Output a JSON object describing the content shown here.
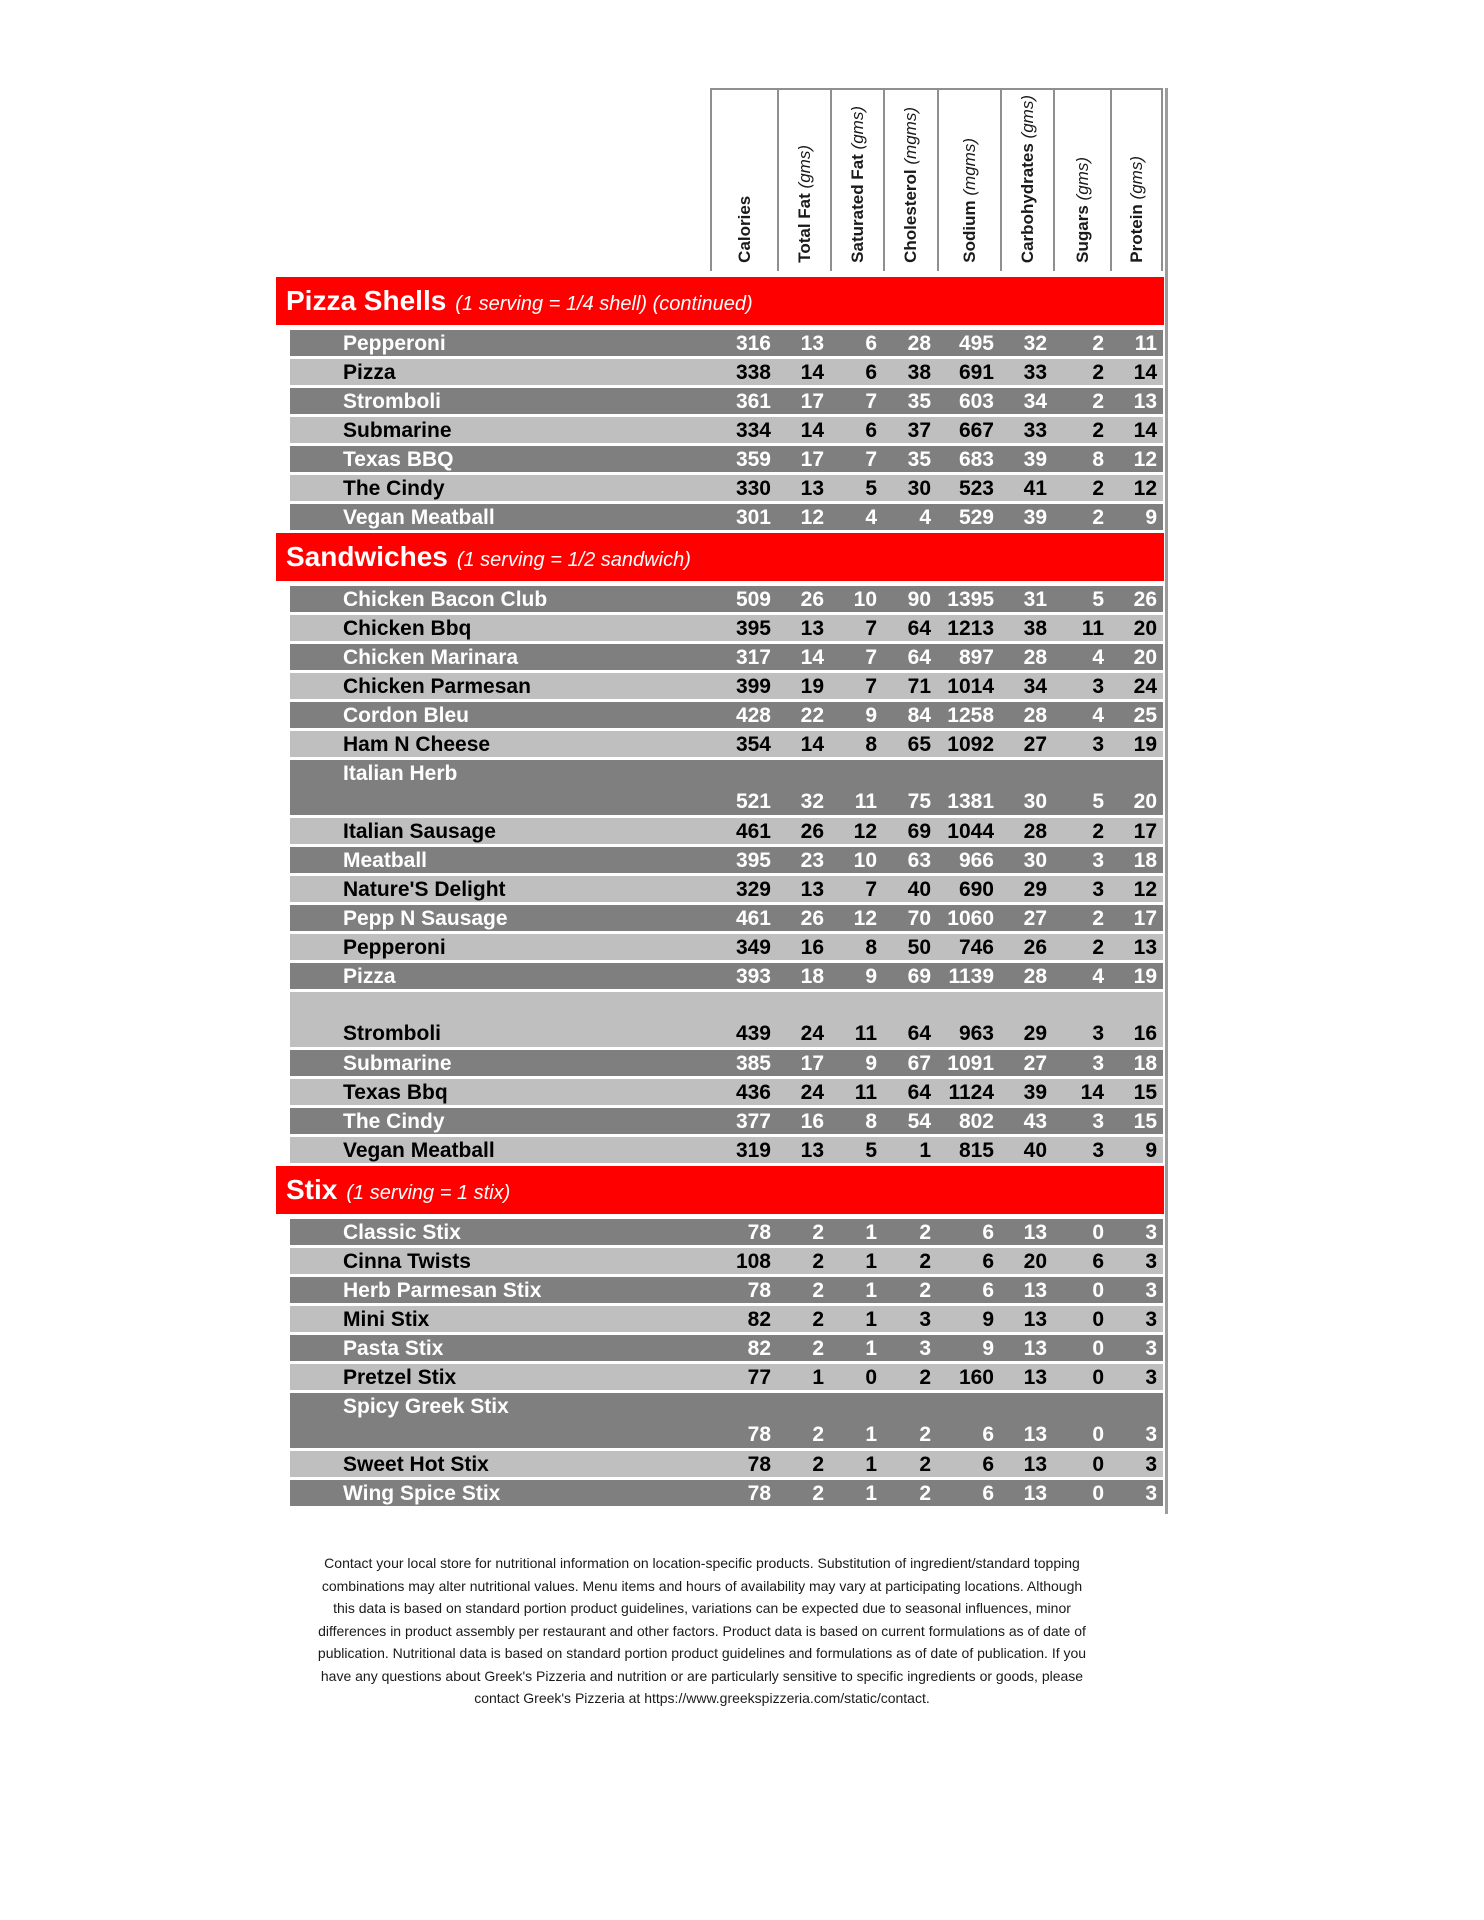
{
  "columns": [
    {
      "label": "Calories",
      "unit": ""
    },
    {
      "label": "Total Fat",
      "unit": "(gms)"
    },
    {
      "label": "Saturated Fat",
      "unit": "(gms)"
    },
    {
      "label": "Cholesterol",
      "unit": "(mgms)"
    },
    {
      "label": "Sodium",
      "unit": "(mgms)"
    },
    {
      "label": "Carbohydrates",
      "unit": "(gms)"
    },
    {
      "label": "Sugars",
      "unit": "(gms)"
    },
    {
      "label": "Protein",
      "unit": "(gms)"
    }
  ],
  "sections": [
    {
      "title": "Pizza Shells",
      "subtitle": "(1 serving = 1/4 shell) (continued)",
      "rows": [
        {
          "name": "Pepperoni",
          "values": [
            316,
            13,
            6,
            28,
            495,
            32,
            2,
            11
          ]
        },
        {
          "name": "Pizza",
          "values": [
            338,
            14,
            6,
            38,
            691,
            33,
            2,
            14
          ]
        },
        {
          "name": "Stromboli",
          "values": [
            361,
            17,
            7,
            35,
            603,
            34,
            2,
            13
          ]
        },
        {
          "name": "Submarine",
          "values": [
            334,
            14,
            6,
            37,
            667,
            33,
            2,
            14
          ]
        },
        {
          "name": "Texas BBQ",
          "values": [
            359,
            17,
            7,
            35,
            683,
            39,
            8,
            12
          ]
        },
        {
          "name": "The Cindy",
          "values": [
            330,
            13,
            5,
            30,
            523,
            41,
            2,
            12
          ]
        },
        {
          "name": "Vegan Meatball",
          "values": [
            301,
            12,
            4,
            4,
            529,
            39,
            2,
            9
          ]
        }
      ]
    },
    {
      "title": "Sandwiches",
      "subtitle": "(1 serving = 1/2 sandwich)",
      "rows": [
        {
          "name": "Chicken Bacon Club",
          "values": [
            509,
            26,
            10,
            90,
            1395,
            31,
            5,
            26
          ]
        },
        {
          "name": "Chicken Bbq",
          "values": [
            395,
            13,
            7,
            64,
            1213,
            38,
            11,
            20
          ]
        },
        {
          "name": "Chicken Marinara",
          "values": [
            317,
            14,
            7,
            64,
            897,
            28,
            4,
            20
          ]
        },
        {
          "name": "Chicken Parmesan",
          "values": [
            399,
            19,
            7,
            71,
            1014,
            34,
            3,
            24
          ]
        },
        {
          "name": "Cordon Bleu",
          "values": [
            428,
            22,
            9,
            84,
            1258,
            28,
            4,
            25
          ]
        },
        {
          "name": "Ham N Cheese",
          "values": [
            354,
            14,
            8,
            65,
            1092,
            27,
            3,
            19
          ]
        },
        {
          "name": "Italian Herb",
          "values": [
            521,
            32,
            11,
            75,
            1381,
            30,
            5,
            20
          ],
          "tall": true,
          "label_pos": "top"
        },
        {
          "name": "Italian Sausage",
          "values": [
            461,
            26,
            12,
            69,
            1044,
            28,
            2,
            17
          ]
        },
        {
          "name": "Meatball",
          "values": [
            395,
            23,
            10,
            63,
            966,
            30,
            3,
            18
          ]
        },
        {
          "name": "Nature'S Delight",
          "values": [
            329,
            13,
            7,
            40,
            690,
            29,
            3,
            12
          ]
        },
        {
          "name": "Pepp N Sausage",
          "values": [
            461,
            26,
            12,
            70,
            1060,
            27,
            2,
            17
          ]
        },
        {
          "name": "Pepperoni",
          "values": [
            349,
            16,
            8,
            50,
            746,
            26,
            2,
            13
          ]
        },
        {
          "name": "Pizza",
          "values": [
            393,
            18,
            9,
            69,
            1139,
            28,
            4,
            19
          ]
        },
        {
          "name": "Stromboli",
          "values": [
            439,
            24,
            11,
            64,
            963,
            29,
            3,
            16
          ],
          "tall": true,
          "label_pos": "bottom"
        },
        {
          "name": "Submarine",
          "values": [
            385,
            17,
            9,
            67,
            1091,
            27,
            3,
            18
          ]
        },
        {
          "name": "Texas Bbq",
          "values": [
            436,
            24,
            11,
            64,
            1124,
            39,
            14,
            15
          ]
        },
        {
          "name": "The Cindy",
          "values": [
            377,
            16,
            8,
            54,
            802,
            43,
            3,
            15
          ]
        },
        {
          "name": "Vegan Meatball",
          "values": [
            319,
            13,
            5,
            1,
            815,
            40,
            3,
            9
          ]
        }
      ]
    },
    {
      "title": "Stix",
      "subtitle": "(1 serving = 1 stix)",
      "rows": [
        {
          "name": "Classic Stix",
          "values": [
            78,
            2,
            1,
            2,
            6,
            13,
            0,
            3
          ]
        },
        {
          "name": "Cinna Twists",
          "values": [
            108,
            2,
            1,
            2,
            6,
            20,
            6,
            3
          ]
        },
        {
          "name": "Herb Parmesan Stix",
          "values": [
            78,
            2,
            1,
            2,
            6,
            13,
            0,
            3
          ]
        },
        {
          "name": "Mini Stix",
          "values": [
            82,
            2,
            1,
            3,
            9,
            13,
            0,
            3
          ]
        },
        {
          "name": "Pasta Stix",
          "values": [
            82,
            2,
            1,
            3,
            9,
            13,
            0,
            3
          ]
        },
        {
          "name": "Pretzel Stix",
          "values": [
            77,
            1,
            0,
            2,
            160,
            13,
            0,
            3
          ]
        },
        {
          "name": "Spicy Greek Stix",
          "values": [
            78,
            2,
            1,
            2,
            6,
            13,
            0,
            3
          ],
          "tall": true,
          "label_pos": "top"
        },
        {
          "name": "Sweet Hot Stix",
          "values": [
            78,
            2,
            1,
            2,
            6,
            13,
            0,
            3
          ]
        },
        {
          "name": "Wing Spice Stix",
          "values": [
            78,
            2,
            1,
            2,
            6,
            13,
            0,
            3
          ]
        }
      ]
    }
  ],
  "footer": {
    "lines": [
      "Contact your local store for nutritional information on location-specific products. Substitution of ingredient/standard topping",
      "combinations may alter nutritional values. Menu items and hours of availability may vary at participating locations. Although",
      "this data is based on standard portion product guidelines, variations can be expected due to seasonal influences, minor",
      "differences in product assembly per restaurant and other factors. Product data is based on current formulations as of date of",
      "publication. Nutritional data is based on standard portion product guidelines and formulations as of date of publication. If you",
      "have any questions about Greek's Pizzeria and nutrition or are particularly sensitive to specific ingredients or goods, please",
      "contact Greek's Pizzeria at https://www.greekspizzeria.com/static/contact."
    ]
  },
  "colors": {
    "section_bar": "#FF0000",
    "row_dark": "#7F7F7F",
    "row_light": "#BFBFBF",
    "row_text_dark": "#FFFFFF",
    "row_text_light": "#000000",
    "header_border": "#8F8F8F"
  }
}
